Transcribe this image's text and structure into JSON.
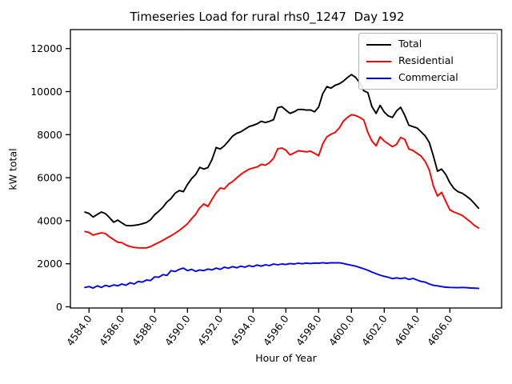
{
  "chart": {
    "title": "Timeseries Load for rural rhs0_1247  Day 192",
    "xlabel": "Hour of Year",
    "ylabel": "kW total"
  },
  "legend": {
    "items": [
      {
        "label": "Total",
        "color": "#000000"
      },
      {
        "label": "Residential",
        "color": "#ff0000"
      },
      {
        "label": "Commercial",
        "color": "#0000ff"
      }
    ]
  },
  "chart_data": {
    "type": "line",
    "title": "Timeseries Load for rural rhs0_1247  Day 192",
    "xlabel": "Hour of Year",
    "ylabel": "kW total",
    "grid": false,
    "legend_position": "upper right",
    "xlim": [
      4582.85,
      4608.95
    ],
    "ylim": [
      0,
      12880
    ],
    "x_ticks": [
      4584,
      4586,
      4588,
      4590,
      4592,
      4594,
      4596,
      4598,
      4600,
      4602,
      4604,
      4606
    ],
    "x_tick_labels": [
      "4584.0",
      "4586.0",
      "4588.0",
      "4590.0",
      "4592.0",
      "4594.0",
      "4596.0",
      "4598.0",
      "4600.0",
      "4602.0",
      "4604.0",
      "4606.0"
    ],
    "y_ticks": [
      0,
      2000,
      4000,
      6000,
      8000,
      10000,
      12000
    ],
    "y_tick_labels": [
      "0",
      "2000",
      "4000",
      "6000",
      "8000",
      "10000",
      "12000"
    ],
    "x_start": 4583.75,
    "x_step": 0.25,
    "n_points": 97,
    "series": [
      {
        "name": "Total",
        "color": "#000000",
        "values": [
          4400,
          4340,
          4170,
          4290,
          4405,
          4330,
          4140,
          3930,
          4030,
          3900,
          3780,
          3765,
          3785,
          3810,
          3860,
          3920,
          4050,
          4280,
          4440,
          4630,
          4870,
          5030,
          5280,
          5400,
          5350,
          5680,
          5950,
          6150,
          6480,
          6400,
          6470,
          6850,
          7400,
          7330,
          7480,
          7700,
          7930,
          8060,
          8130,
          8250,
          8370,
          8430,
          8500,
          8620,
          8560,
          8620,
          8690,
          9250,
          9300,
          9140,
          8990,
          9060,
          9170,
          9170,
          9140,
          9150,
          9060,
          9280,
          9900,
          10230,
          10160,
          10290,
          10360,
          10480,
          10650,
          10790,
          10660,
          10420,
          10040,
          9950,
          9300,
          8990,
          9360,
          9050,
          8870,
          8800,
          9100,
          9270,
          8900,
          8440,
          8370,
          8310,
          8130,
          7940,
          7630,
          7000,
          6300,
          6400,
          6150,
          5770,
          5500,
          5350,
          5280,
          5150,
          5000,
          4800,
          4580
        ]
      },
      {
        "name": "Residential",
        "color": "#ff0000",
        "values": [
          3500,
          3450,
          3330,
          3390,
          3440,
          3400,
          3250,
          3120,
          3000,
          2980,
          2870,
          2800,
          2760,
          2740,
          2735,
          2740,
          2800,
          2900,
          2990,
          3090,
          3200,
          3300,
          3420,
          3550,
          3700,
          3860,
          4090,
          4300,
          4600,
          4780,
          4660,
          5000,
          5300,
          5520,
          5480,
          5700,
          5820,
          5990,
          6150,
          6280,
          6390,
          6450,
          6500,
          6620,
          6580,
          6700,
          6900,
          7340,
          7380,
          7280,
          7060,
          7150,
          7250,
          7230,
          7200,
          7230,
          7130,
          7020,
          7570,
          7900,
          8020,
          8100,
          8300,
          8620,
          8800,
          8930,
          8890,
          8800,
          8680,
          8100,
          7700,
          7480,
          7900,
          7700,
          7570,
          7440,
          7550,
          7870,
          7780,
          7330,
          7260,
          7130,
          7000,
          6750,
          6350,
          5600,
          5150,
          5320,
          4900,
          4500,
          4400,
          4330,
          4250,
          4100,
          3950,
          3780,
          3660
        ]
      },
      {
        "name": "Commercial",
        "color": "#0000ff",
        "values": [
          900,
          940,
          870,
          975,
          900,
          995,
          940,
          1020,
          975,
          1060,
          1000,
          1120,
          1060,
          1180,
          1145,
          1245,
          1220,
          1390,
          1370,
          1495,
          1460,
          1680,
          1640,
          1740,
          1800,
          1680,
          1740,
          1645,
          1715,
          1680,
          1755,
          1715,
          1800,
          1740,
          1840,
          1790,
          1865,
          1815,
          1890,
          1840,
          1915,
          1865,
          1940,
          1890,
          1950,
          1915,
          1990,
          1950,
          1990,
          1965,
          2010,
          1990,
          2025,
          2000,
          2035,
          2010,
          2035,
          2025,
          2050,
          2025,
          2050,
          2040,
          2050,
          2015,
          1965,
          1930,
          1890,
          1830,
          1765,
          1695,
          1615,
          1540,
          1470,
          1415,
          1370,
          1310,
          1345,
          1310,
          1345,
          1270,
          1320,
          1245,
          1180,
          1145,
          1060,
          995,
          975,
          935,
          910,
          900,
          895,
          890,
          900,
          890,
          875,
          865,
          855
        ]
      }
    ]
  }
}
